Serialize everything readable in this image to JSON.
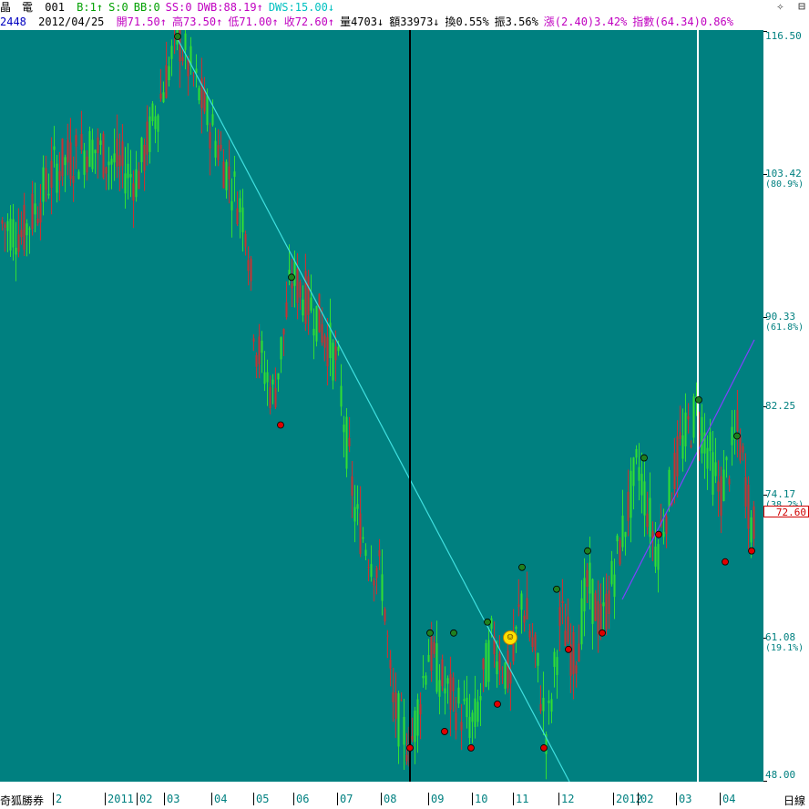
{
  "titlebar": {
    "stock_name": "晶　電",
    "code": "001",
    "stats": [
      {
        "text": "B:1↑",
        "color": "#00a000"
      },
      {
        "text": "S:0",
        "color": "#00a000"
      },
      {
        "text": "BB:0",
        "color": "#00a000"
      },
      {
        "text": "SS:0",
        "color": "#c000c0"
      },
      {
        "text": "DWB:88.19↑",
        "color": "#c000c0"
      },
      {
        "text": "DWS:15.00↓",
        "color": "#00c0c0"
      }
    ],
    "icons": [
      "settings-icon",
      "window-icon"
    ]
  },
  "infobar": {
    "code": "2448",
    "date": "2012/04/25",
    "items": [
      {
        "text": "開71.50↑",
        "color": "#c000c0"
      },
      {
        "text": "高73.50↑",
        "color": "#c000c0"
      },
      {
        "text": "低71.00↑",
        "color": "#c000c0"
      },
      {
        "text": "收72.60↑",
        "color": "#c000c0"
      },
      {
        "text": "量4703↓",
        "color": "#000000"
      },
      {
        "text": "額33973↓",
        "color": "#000000"
      },
      {
        "text": "換0.55%",
        "color": "#000000"
      },
      {
        "text": "振3.56%",
        "color": "#000000"
      },
      {
        "text": "漲(2.40)3.42%",
        "color": "#c000c0"
      },
      {
        "text": "指數(64.34)0.86%",
        "color": "#c000c0"
      }
    ]
  },
  "yaxis": {
    "ticks": [
      {
        "value": "116.50",
        "pct": ""
      },
      {
        "value": "103.42",
        "pct": "(80.9%)"
      },
      {
        "value": "90.33",
        "pct": "(61.8%)"
      },
      {
        "value": "82.25",
        "pct": ""
      },
      {
        "value": "74.17",
        "pct": "(38.2%)"
      },
      {
        "value": "61.08",
        "pct": "(19.1%)"
      },
      {
        "value": "48.00",
        "pct": ""
      }
    ],
    "last_price": "72.60"
  },
  "xaxis": {
    "brand": "奇狐勝券",
    "labels": [
      "2",
      "2011",
      "02",
      "03",
      "04",
      "05",
      "06",
      "07",
      "08",
      "09",
      "10",
      "11",
      "12",
      "2012",
      "02",
      "03",
      "04"
    ],
    "period": "日線"
  },
  "colors": {
    "background": "#008080",
    "up": "#c83232",
    "down": "#32e032",
    "trendline": "#40e0e0",
    "trendline_up": "#8040ff",
    "cursor_line": "#000000",
    "white_line": "#ffffff"
  },
  "chart_data": {
    "type": "candlestick",
    "title": "",
    "ylim": [
      48.0,
      116.5
    ],
    "y_ticks": [
      116.5,
      103.42,
      90.33,
      82.25,
      74.17,
      61.08,
      48.0
    ],
    "x_months": [
      "2011",
      "02",
      "03",
      "04",
      "05",
      "06",
      "07",
      "08",
      "09",
      "10",
      "11",
      "12",
      "2012",
      "02",
      "03",
      "04"
    ],
    "last_close": 72.6,
    "markers_high": [
      116.0,
      94.0,
      61.5,
      61.5,
      62.5,
      67.5,
      65.5,
      69.0,
      77.5,
      82.8,
      79.5
    ],
    "markers_low": [
      80.5,
      51.0,
      52.5,
      51.0,
      55.0,
      51.0,
      60.0,
      61.5,
      70.5,
      68.0,
      69.0
    ]
  }
}
